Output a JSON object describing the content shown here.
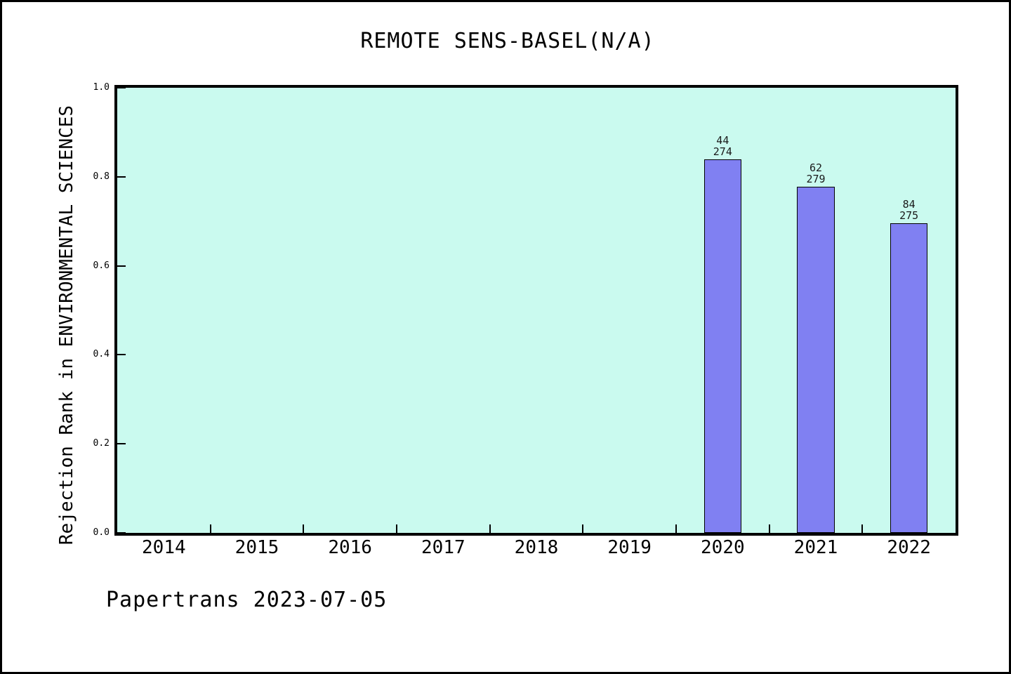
{
  "footer": {
    "text": "Papertrans 2023-07-05"
  },
  "chart_data": {
    "type": "bar",
    "title": "REMOTE SENS-BASEL(N/A)",
    "ylabel": "Rejection Rank in ENVIRONMENTAL SCIENCES",
    "xlabel": "",
    "ylim": [
      0.0,
      1.0
    ],
    "grid": false,
    "legend": null,
    "categories": [
      "2014",
      "2015",
      "2016",
      "2017",
      "2018",
      "2019",
      "2020",
      "2021",
      "2022"
    ],
    "values": [
      null,
      null,
      null,
      null,
      null,
      null,
      0.839,
      0.778,
      0.695
    ],
    "bar_annotations": [
      null,
      null,
      null,
      null,
      null,
      null,
      {
        "numerator": "44",
        "denominator": "274"
      },
      {
        "numerator": "62",
        "denominator": "279"
      },
      {
        "numerator": "84",
        "denominator": "275"
      }
    ],
    "yticks": [
      0.0,
      0.2,
      0.4,
      0.6,
      0.8,
      1.0
    ],
    "ytick_labels": [
      "0.0",
      "0.2",
      "0.4",
      "0.6",
      "0.8",
      "1.0"
    ],
    "colors": {
      "plot_background": "#cafaef",
      "bar_fill": "#8080f2",
      "bar_border": "#000000",
      "axis": "#000000",
      "text": "#000000"
    }
  }
}
